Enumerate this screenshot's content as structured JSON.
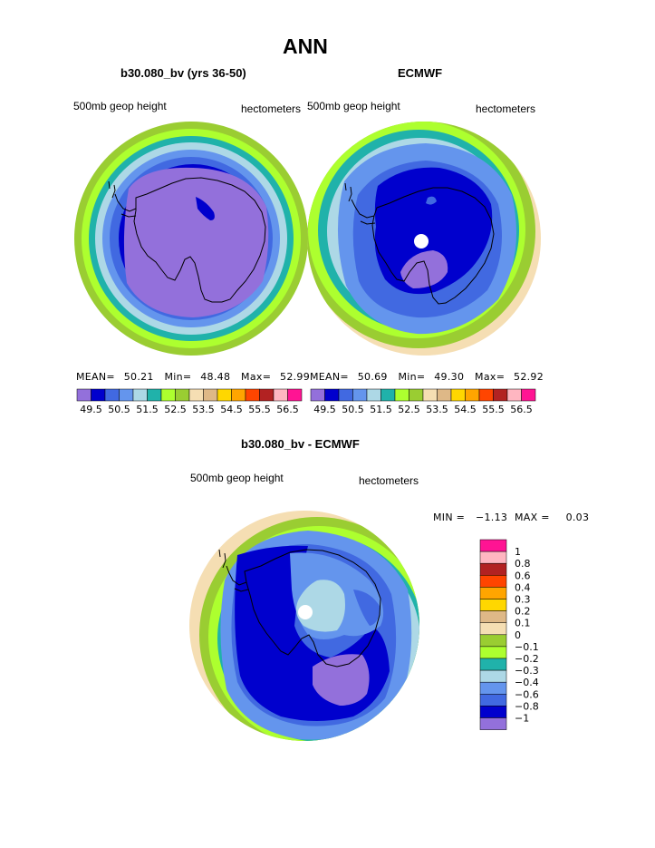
{
  "title": "ANN",
  "panels": [
    {
      "subtitle": "b30.080_bv (yrs 36-50)",
      "left_label": "500mb geop height",
      "right_label": "hectometers",
      "stats": {
        "mean_label": "MEAN=",
        "mean": "50.21",
        "min_label": "Min=",
        "min": "48.48",
        "max_label": "Max=",
        "max": "52.99"
      }
    },
    {
      "subtitle": "ECMWF",
      "left_label": "500mb geop height",
      "right_label": "hectometers",
      "stats": {
        "mean_label": "MEAN=",
        "mean": "50.69",
        "min_label": "Min=",
        "min": "49.30",
        "max_label": "Max=",
        "max": "52.92"
      }
    },
    {
      "subtitle": "b30.080_bv - ECMWF",
      "left_label": "500mb geop height",
      "right_label": "hectometers",
      "stats": {
        "min_label": "MIN =",
        "min": "−1.13",
        "max_label": "MAX =",
        "max": "0.03"
      }
    }
  ],
  "colorbar_horizontal": {
    "colors": [
      "#9370DB",
      "#0000CD",
      "#4169E1",
      "#6495ED",
      "#ADD8E6",
      "#20B2AA",
      "#ADFF2F",
      "#9ACD32",
      "#F5DEB3",
      "#DEB887",
      "#FFD700",
      "#FFA500",
      "#FF4500",
      "#B22222",
      "#FFB6C1",
      "#FF1493"
    ],
    "labels": [
      "49.5",
      "50.5",
      "51.5",
      "52.5",
      "53.5",
      "54.5",
      "55.5",
      "56.5"
    ]
  },
  "colorbar_vertical": {
    "colors_top_to_bottom": [
      "#FF1493",
      "#FFB6C1",
      "#B22222",
      "#FF4500",
      "#FFA500",
      "#FFD700",
      "#DEB887",
      "#F5DEB3",
      "#9ACD32",
      "#ADFF2F",
      "#20B2AA",
      "#ADD8E6",
      "#6495ED",
      "#4169E1",
      "#0000CD",
      "#9370DB"
    ],
    "labels_top_to_bottom": [
      "1",
      "0.8",
      "0.6",
      "0.4",
      "0.3",
      "0.2",
      "0.1",
      "0",
      "−0.1",
      "−0.2",
      "−0.3",
      "−0.4",
      "−0.6",
      "−0.8",
      "−1"
    ]
  }
}
